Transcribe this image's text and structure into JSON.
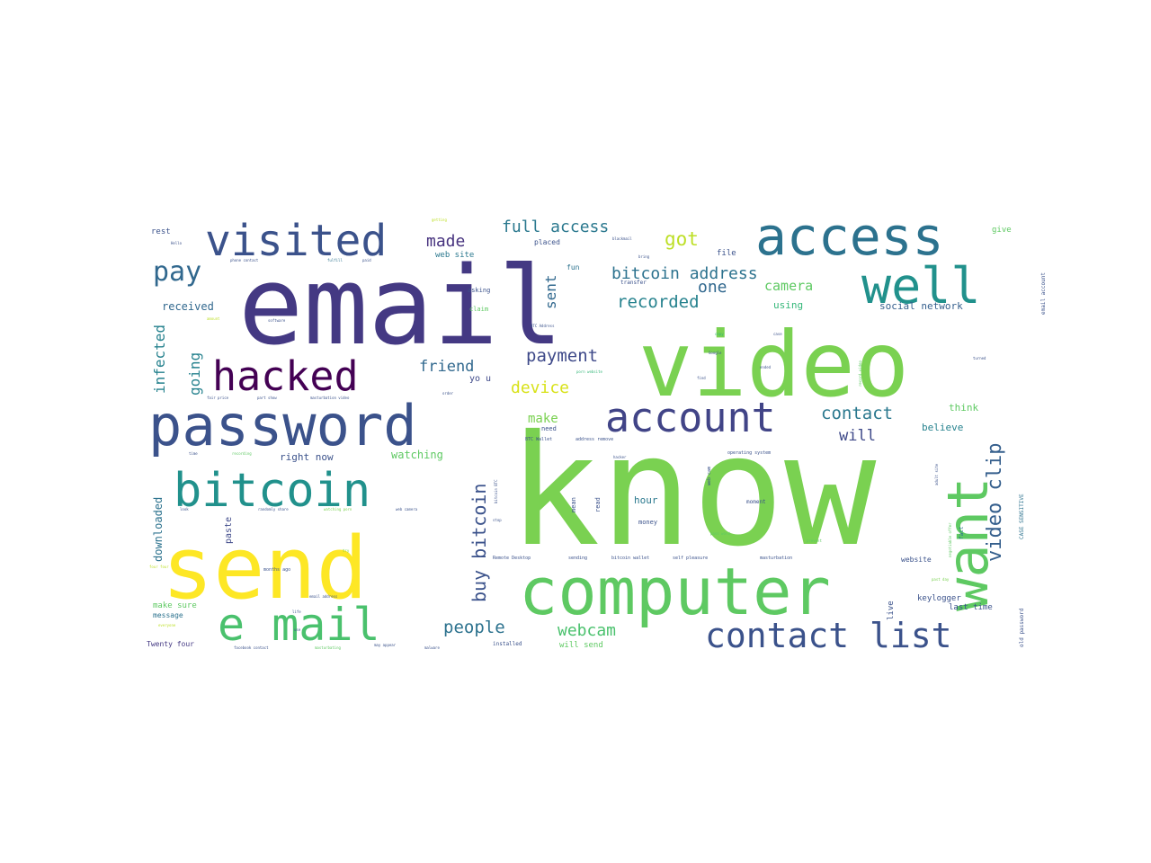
{
  "words": [
    {
      "text": "know",
      "color": "#7ad151",
      "weight": 100
    },
    {
      "text": "email",
      "color": "#443983",
      "weight": 96
    },
    {
      "text": "video",
      "color": "#7ad151",
      "weight": 90
    },
    {
      "text": "send",
      "color": "#fde725",
      "weight": 80
    },
    {
      "text": "computer",
      "color": "#5ec962",
      "weight": 62
    },
    {
      "text": "access",
      "color": "#2c728e",
      "weight": 55
    },
    {
      "text": "password",
      "color": "#3b528b",
      "weight": 53
    },
    {
      "text": "want",
      "color": "#5ec962",
      "weight": 52
    },
    {
      "text": "bitcoin",
      "color": "#21918c",
      "weight": 50
    },
    {
      "text": "well",
      "color": "#21918c",
      "weight": 48
    },
    {
      "text": "visited",
      "color": "#3b528b",
      "weight": 46
    },
    {
      "text": "e mail",
      "color": "#4ac16d",
      "weight": 46
    },
    {
      "text": "account",
      "color": "#414487",
      "weight": 44
    },
    {
      "text": "hacked",
      "color": "#440154",
      "weight": 42
    },
    {
      "text": "contact list",
      "color": "#3b528b",
      "weight": 38
    },
    {
      "text": "pay",
      "color": "#31688e",
      "weight": 30
    },
    {
      "text": "video clip",
      "color": "#355f8d",
      "weight": 24
    },
    {
      "text": "buy bitcoin",
      "color": "#3b528b",
      "weight": 20
    },
    {
      "text": "got",
      "color": "#bddf26",
      "weight": 20
    },
    {
      "text": "full access",
      "color": "#2a788e",
      "weight": 19
    },
    {
      "text": "bitcoin address",
      "color": "#2c728e",
      "weight": 19
    },
    {
      "text": "recorded",
      "color": "#26828e",
      "weight": 18
    },
    {
      "text": "made",
      "color": "#46327e",
      "weight": 18
    },
    {
      "text": "payment",
      "color": "#3e4989",
      "weight": 18
    },
    {
      "text": "contact",
      "color": "#2a788e",
      "weight": 18
    },
    {
      "text": "device",
      "color": "#d8e219",
      "weight": 18
    },
    {
      "text": "people",
      "color": "#2c728e",
      "weight": 18
    },
    {
      "text": "webcam",
      "color": "#4ac16d",
      "weight": 18
    },
    {
      "text": "one",
      "color": "#31688e",
      "weight": 18
    },
    {
      "text": "friend",
      "color": "#31688e",
      "weight": 16
    },
    {
      "text": "sent",
      "color": "#31688e",
      "weight": 16
    },
    {
      "text": "going",
      "color": "#26828e",
      "weight": 16
    },
    {
      "text": "infected",
      "color": "#26828e",
      "weight": 16
    },
    {
      "text": "will",
      "color": "#3e4989",
      "weight": 16
    },
    {
      "text": "camera",
      "color": "#5ec962",
      "weight": 14
    },
    {
      "text": "make",
      "color": "#7ad151",
      "weight": 14
    },
    {
      "text": "watching",
      "color": "#5ec962",
      "weight": 12
    },
    {
      "text": "right now",
      "color": "#3b528b",
      "weight": 11
    },
    {
      "text": "received",
      "color": "#31688e",
      "weight": 12
    },
    {
      "text": "downloaded",
      "color": "#2c728e",
      "weight": 12
    },
    {
      "text": "paste",
      "color": "#3e4989",
      "weight": 10
    },
    {
      "text": "yo u",
      "color": "#3e4989",
      "weight": 10
    },
    {
      "text": "social network",
      "color": "#355f8d",
      "weight": 11
    },
    {
      "text": "using",
      "color": "#35b779",
      "weight": 11
    },
    {
      "text": "hour",
      "color": "#2a788e",
      "weight": 11
    },
    {
      "text": "believe",
      "color": "#26828e",
      "weight": 11
    },
    {
      "text": "think",
      "color": "#5ec962",
      "weight": 11
    },
    {
      "text": "keylogger",
      "color": "#3b528b",
      "weight": 9
    },
    {
      "text": "live",
      "color": "#3b528b",
      "weight": 9
    },
    {
      "text": "make sure",
      "color": "#5ec962",
      "weight": 9
    },
    {
      "text": "will send",
      "color": "#5ec962",
      "weight": 9
    },
    {
      "text": "last time",
      "color": "#3b528b",
      "weight": 9
    },
    {
      "text": "website",
      "color": "#3b528b",
      "weight": 8
    },
    {
      "text": "message",
      "color": "#2c728e",
      "weight": 8
    },
    {
      "text": "Twenty four",
      "color": "#443983",
      "weight": 8
    },
    {
      "text": "rest",
      "color": "#3b528b",
      "weight": 9
    },
    {
      "text": "give",
      "color": "#5ec962",
      "weight": 9
    },
    {
      "text": "file",
      "color": "#3b528b",
      "weight": 9
    },
    {
      "text": "web site",
      "color": "#2a788e",
      "weight": 9
    },
    {
      "text": "placed",
      "color": "#3b528b",
      "weight": 8
    },
    {
      "text": "fun",
      "color": "#2c728e",
      "weight": 8
    },
    {
      "text": "asking",
      "color": "#3b528b",
      "weight": 7
    },
    {
      "text": "claim",
      "color": "#5ec962",
      "weight": 7
    },
    {
      "text": "money",
      "color": "#3b528b",
      "weight": 7
    },
    {
      "text": "mean",
      "color": "#3b528b",
      "weight": 7
    },
    {
      "text": "read",
      "color": "#3b528b",
      "weight": 7
    },
    {
      "text": "need",
      "color": "#3b528b",
      "weight": 7
    },
    {
      "text": "moment",
      "color": "#3b528b",
      "weight": 6
    },
    {
      "text": "fact",
      "color": "#2c728e",
      "weight": 6
    },
    {
      "text": "transfer",
      "color": "#3b528b",
      "weight": 6
    },
    {
      "text": "installed",
      "color": "#3b528b",
      "weight": 6
    },
    {
      "text": "email account",
      "color": "#3b528b",
      "weight": 6
    },
    {
      "text": "old password",
      "color": "#3b528b",
      "weight": 6
    },
    {
      "text": "CASE SENSITIVE",
      "color": "#2c728e",
      "weight": 6
    },
    {
      "text": "months ago",
      "color": "#3b528b",
      "weight": 5
    },
    {
      "text": "web cam",
      "color": "#3b528b",
      "weight": 5
    },
    {
      "text": "Remote Desktop",
      "color": "#3b528b",
      "weight": 5
    },
    {
      "text": "sending",
      "color": "#3b528b",
      "weight": 5
    },
    {
      "text": "bitcoin wallet",
      "color": "#3b528b",
      "weight": 5
    },
    {
      "text": "self pleasure",
      "color": "#3b528b",
      "weight": 5
    },
    {
      "text": "masturbation",
      "color": "#3b528b",
      "weight": 5
    },
    {
      "text": "BTC Wallet",
      "color": "#3b528b",
      "weight": 5
    },
    {
      "text": "address remove",
      "color": "#3b528b",
      "weight": 5
    },
    {
      "text": "operating system",
      "color": "#3b528b",
      "weight": 5
    },
    {
      "text": "phone contact",
      "color": "#3b528b",
      "weight": 4
    },
    {
      "text": "fulfill",
      "color": "#2c728e",
      "weight": 4
    },
    {
      "text": "fair price",
      "color": "#3b528b",
      "weight": 4
    },
    {
      "text": "part show",
      "color": "#3b528b",
      "weight": 4
    },
    {
      "text": "masturbation video",
      "color": "#3b528b",
      "weight": 4
    },
    {
      "text": "randomly share",
      "color": "#3b528b",
      "weight": 4
    },
    {
      "text": "watching porn",
      "color": "#7ad151",
      "weight": 4
    },
    {
      "text": "web camera",
      "color": "#3b528b",
      "weight": 4
    },
    {
      "text": "facebook contact",
      "color": "#3b528b",
      "weight": 4
    },
    {
      "text": "masturbating",
      "color": "#5ec962",
      "weight": 4
    },
    {
      "text": "may appear",
      "color": "#3b528b",
      "weight": 4
    },
    {
      "text": "malware",
      "color": "#3b528b",
      "weight": 4
    },
    {
      "text": "email address",
      "color": "#3b528b",
      "weight": 4
    },
    {
      "text": "software",
      "color": "#3b528b",
      "weight": 4
    },
    {
      "text": "Google",
      "color": "#3b528b",
      "weight": 4
    },
    {
      "text": "porn website",
      "color": "#35b779",
      "weight": 4
    },
    {
      "text": "negotiable offer",
      "color": "#5ec962",
      "weight": 4
    },
    {
      "text": "adult site",
      "color": "#3b528b",
      "weight": 4
    },
    {
      "text": "past day",
      "color": "#7ad151",
      "weight": 4
    },
    {
      "text": "record video",
      "color": "#5ec962",
      "weight": 4
    },
    {
      "text": "BTC Address",
      "color": "#3b528b",
      "weight": 4
    },
    {
      "text": "bitcoin BTC",
      "color": "#3b528b",
      "weight": 4
    },
    {
      "text": "getting",
      "color": "#bddf26",
      "weight": 4
    },
    {
      "text": "blackmail",
      "color": "#3b528b",
      "weight": 4
    },
    {
      "text": "bring",
      "color": "#3b528b",
      "weight": 4
    },
    {
      "text": "Hello",
      "color": "#3b528b",
      "weight": 4
    },
    {
      "text": "paid",
      "color": "#3b528b",
      "weight": 4
    },
    {
      "text": "ended",
      "color": "#3b528b",
      "weight": 4
    },
    {
      "text": "turned",
      "color": "#3b528b",
      "weight": 4
    },
    {
      "text": "copy",
      "color": "#35b779",
      "weight": 4
    },
    {
      "text": "case",
      "color": "#3b528b",
      "weight": 4
    },
    {
      "text": "find",
      "color": "#3b528b",
      "weight": 4
    },
    {
      "text": "time",
      "color": "#3b528b",
      "weight": 4
    },
    {
      "text": "look",
      "color": "#3b528b",
      "weight": 4
    },
    {
      "text": "try",
      "color": "#7ad151",
      "weight": 4
    },
    {
      "text": "life",
      "color": "#3b528b",
      "weight": 4
    },
    {
      "text": "use",
      "color": "#3b528b",
      "weight": 4
    },
    {
      "text": "stop",
      "color": "#3b528b",
      "weight": 4
    },
    {
      "text": "order",
      "color": "#3b528b",
      "weight": 4
    },
    {
      "text": "everyone",
      "color": "#bddf26",
      "weight": 4
    },
    {
      "text": "recording",
      "color": "#5ec962",
      "weight": 4
    },
    {
      "text": "pass word",
      "color": "#5ec962",
      "weight": 4
    },
    {
      "text": "prevent",
      "color": "#5ec962",
      "weight": 4
    },
    {
      "text": "hacker",
      "color": "#3b528b",
      "weight": 4
    },
    {
      "text": "amount",
      "color": "#bddf26",
      "weight": 4
    },
    {
      "text": "four four",
      "color": "#bddf26",
      "weight": 4
    }
  ]
}
